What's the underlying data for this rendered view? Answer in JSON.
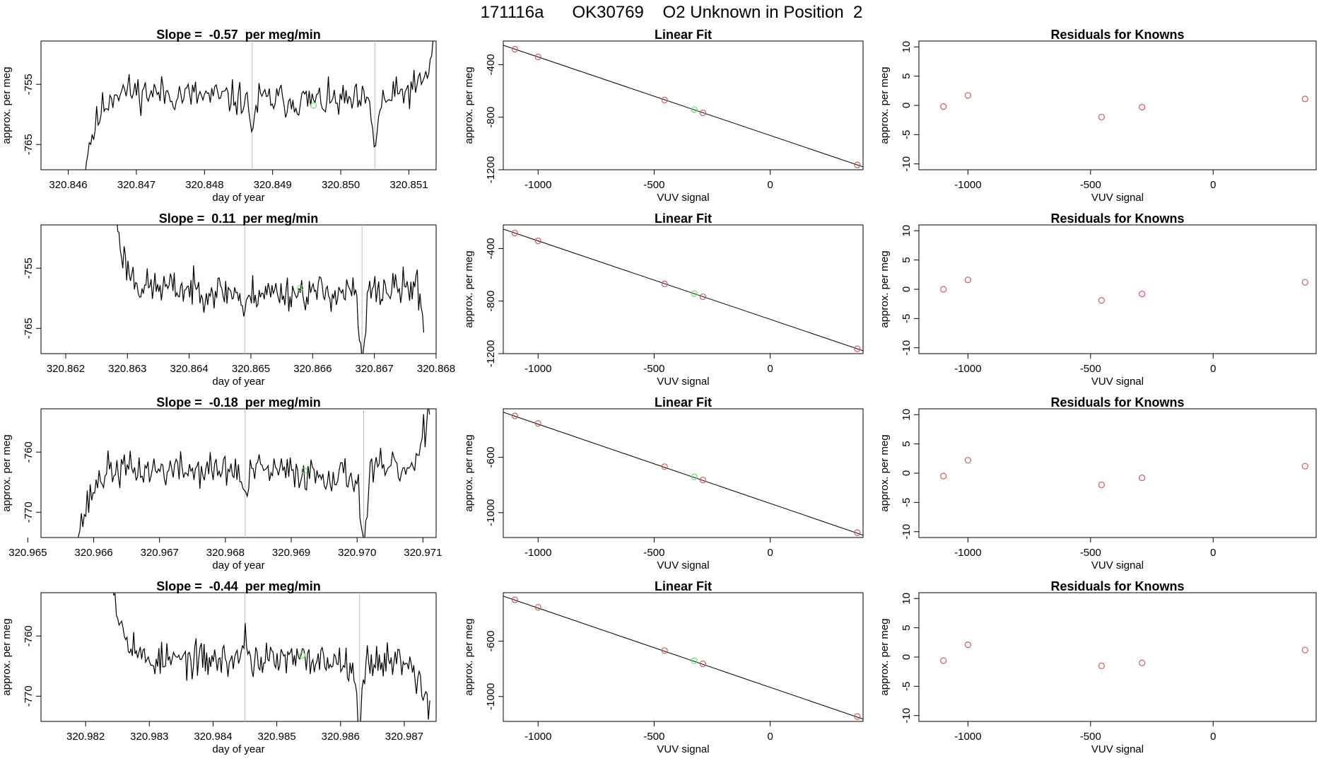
{
  "page": {
    "title": "171116a      OK30769    O2 Unknown in Position  2"
  },
  "colors": {
    "trace": "#000000",
    "vline": "#bbbbbb",
    "known_point": "#cd5c5c",
    "unknown_point": "#66e066"
  },
  "chart_data": [
    {
      "id": "trace-1",
      "type": "line",
      "title": "Slope =  -0.57  per meg/min",
      "xlabel": "day of year",
      "ylabel": "approx. per meg",
      "xlim": [
        320.8456,
        320.8514
      ],
      "ylim": [
        -769.2,
        -747.8
      ],
      "xticks": [
        320.846,
        320.847,
        320.848,
        320.849,
        320.85,
        320.851
      ],
      "xtick_labels": [
        "320.846",
        "320.847",
        "320.848",
        "320.849",
        "320.850",
        "320.851"
      ],
      "yticks": [
        -765,
        -755
      ],
      "ytick_labels": [
        "-765",
        "-755"
      ],
      "vlines": [
        320.8487,
        320.8505
      ],
      "marker": {
        "x": 320.8496,
        "y": -758.5
      },
      "seed": 11,
      "noise": 1.8,
      "profile": [
        [
          320.8462,
          -772
        ],
        [
          320.8463,
          -765
        ],
        [
          320.8464,
          -762
        ],
        [
          320.8465,
          -759
        ],
        [
          320.8467,
          -756
        ],
        [
          320.8486,
          -757.5
        ],
        [
          320.8487,
          -762
        ],
        [
          320.8488,
          -757.5
        ],
        [
          320.8504,
          -758
        ],
        [
          320.8505,
          -765
        ],
        [
          320.8506,
          -758
        ],
        [
          320.8512,
          -755
        ],
        [
          320.8513,
          -752
        ],
        [
          320.8514,
          -745
        ]
      ]
    },
    {
      "id": "fit-1",
      "type": "scatter",
      "title": "Linear Fit",
      "xlabel": "VUV signal",
      "ylabel": "approx. per meg",
      "xlim": [
        -1150,
        400
      ],
      "ylim": [
        -1200,
        -220
      ],
      "xticks": [
        -1000,
        -500,
        0
      ],
      "xtick_labels": [
        "-1000",
        "-500",
        "0"
      ],
      "yticks": [
        -1200,
        -800,
        -400
      ],
      "ytick_labels": [
        "-1200",
        "-800",
        "-400"
      ],
      "line": [
        [
          -1150,
          -252
        ],
        [
          400,
          -1178
        ]
      ],
      "known_x": [
        -1100,
        -1000,
        -455,
        -290,
        375
      ],
      "known_y": [
        -282,
        -341,
        -669,
        -767,
        -1163
      ],
      "unknown_x": [
        -327
      ],
      "unknown_y": [
        -742
      ]
    },
    {
      "id": "resid-1",
      "type": "scatter",
      "title": "Residuals for Knowns",
      "xlabel": "VUV signal",
      "ylabel": "approx. per meg",
      "xlim": [
        -1200,
        420
      ],
      "ylim": [
        -11,
        11
      ],
      "xticks": [
        -1000,
        -500,
        0
      ],
      "xtick_labels": [
        "-1000",
        "-500",
        "0"
      ],
      "yticks": [
        -10,
        -5,
        0,
        5,
        10
      ],
      "ytick_labels": [
        "-10",
        "-5",
        "0",
        "5",
        "10"
      ],
      "known_x": [
        -1100,
        -1000,
        -455,
        -290,
        375
      ],
      "known_y": [
        -0.2,
        1.7,
        -2.0,
        -0.3,
        1.1
      ]
    },
    {
      "id": "trace-2",
      "type": "line",
      "title": "Slope =  0.11  per meg/min",
      "xlabel": "day of year",
      "ylabel": "",
      "xlim": [
        320.8616,
        320.868
      ],
      "ylim": [
        -769.2,
        -747.8
      ],
      "xticks": [
        320.862,
        320.863,
        320.864,
        320.865,
        320.866,
        320.867,
        320.868
      ],
      "xtick_labels": [
        "320.862",
        "320.863",
        "320.864",
        "320.865",
        "320.866",
        "320.867",
        "320.868"
      ],
      "yticks": [
        -765,
        -755
      ],
      "ytick_labels": [
        "-765",
        "-755"
      ],
      "vlines": [
        320.8649,
        320.8668
      ],
      "marker": {
        "x": 320.8658,
        "y": -758.3
      },
      "seed": 23,
      "noise": 1.8,
      "profile": [
        [
          320.8628,
          -745
        ],
        [
          320.8629,
          -752
        ],
        [
          320.863,
          -755
        ],
        [
          320.8632,
          -758
        ],
        [
          320.8648,
          -759
        ],
        [
          320.8649,
          -763
        ],
        [
          320.865,
          -759
        ],
        [
          320.8667,
          -759
        ],
        [
          320.8668,
          -772
        ],
        [
          320.8669,
          -759
        ],
        [
          320.8677,
          -758
        ],
        [
          320.8678,
          -764
        ]
      ]
    },
    {
      "id": "fit-2",
      "type": "scatter",
      "title": "Linear Fit",
      "xlabel": "VUV signal",
      "ylabel": "approx. per meg",
      "xlim": [
        -1150,
        400
      ],
      "ylim": [
        -1200,
        -220
      ],
      "xticks": [
        -1000,
        -500,
        0
      ],
      "xtick_labels": [
        "-1000",
        "-500",
        "0"
      ],
      "yticks": [
        -1200,
        -800,
        -400
      ],
      "ytick_labels": [
        "-1200",
        "-800",
        "-400"
      ],
      "line": [
        [
          -1150,
          -252
        ],
        [
          400,
          -1178
        ]
      ],
      "known_x": [
        -1100,
        -1000,
        -455,
        -290,
        375
      ],
      "known_y": [
        -282,
        -341,
        -669,
        -767,
        -1163
      ],
      "unknown_x": [
        -327
      ],
      "unknown_y": [
        -742
      ]
    },
    {
      "id": "resid-2",
      "type": "scatter",
      "title": "Residuals for Knowns",
      "xlabel": "VUV signal",
      "ylabel": "approx. per meg",
      "xlim": [
        -1200,
        420
      ],
      "ylim": [
        -11,
        11
      ],
      "xticks": [
        -1000,
        -500,
        0
      ],
      "xtick_labels": [
        "-1000",
        "-500",
        "0"
      ],
      "yticks": [
        -10,
        -5,
        0,
        5,
        10
      ],
      "ytick_labels": [
        "-10",
        "-5",
        "0",
        "5",
        "10"
      ],
      "known_x": [
        -1100,
        -1000,
        -455,
        -290,
        375
      ],
      "known_y": [
        0.0,
        1.6,
        -1.9,
        -0.8,
        1.2
      ]
    },
    {
      "id": "trace-3",
      "type": "line",
      "title": "Slope =  -0.18  per meg/min",
      "xlabel": "day of year",
      "ylabel": "approx. per meg",
      "xlim": [
        320.9652,
        320.9712
      ],
      "ylim": [
        -774.2,
        -752.8
      ],
      "xticks": [
        320.965,
        320.966,
        320.967,
        320.968,
        320.969,
        320.97,
        320.971
      ],
      "xtick_labels": [
        "320.965",
        "320.966",
        "320.967",
        "320.968",
        "320.969",
        "320.970",
        "320.971"
      ],
      "yticks": [
        -770,
        -760
      ],
      "ytick_labels": [
        "-770",
        "-760"
      ],
      "vlines": [
        320.9683,
        320.9701
      ],
      "marker": {
        "x": 320.9692,
        "y": -763.1
      },
      "seed": 37,
      "noise": 1.8,
      "profile": [
        [
          320.9657,
          -777
        ],
        [
          320.9658,
          -772
        ],
        [
          320.9659,
          -769
        ],
        [
          320.966,
          -766
        ],
        [
          320.9662,
          -763
        ],
        [
          320.9682,
          -763
        ],
        [
          320.9683,
          -768
        ],
        [
          320.9684,
          -763
        ],
        [
          320.97,
          -764
        ],
        [
          320.9701,
          -776
        ],
        [
          320.9702,
          -763
        ],
        [
          320.9709,
          -763
        ],
        [
          320.971,
          -758
        ],
        [
          320.9711,
          -752
        ]
      ]
    },
    {
      "id": "fit-3",
      "type": "scatter",
      "title": "Linear Fit",
      "xlabel": "VUV signal",
      "ylabel": "approx. per meg",
      "xlim": [
        -1150,
        400
      ],
      "ylim": [
        -1180,
        -250
      ],
      "xticks": [
        -1000,
        -500,
        0
      ],
      "xtick_labels": [
        "-1000",
        "-500",
        "0"
      ],
      "yticks": [
        -1000,
        -600
      ],
      "ytick_labels": [
        "-1000",
        "-600"
      ],
      "line": [
        [
          -1150,
          -275
        ],
        [
          400,
          -1163
        ]
      ],
      "known_x": [
        -1100,
        -1000,
        -455,
        -290,
        375
      ],
      "known_y": [
        -301,
        -356,
        -668,
        -764,
        -1145
      ],
      "unknown_x": [
        -327
      ],
      "unknown_y": [
        -742
      ]
    },
    {
      "id": "resid-3",
      "type": "scatter",
      "title": "Residuals for Knowns",
      "xlabel": "VUV signal",
      "ylabel": "approx. per meg",
      "xlim": [
        -1200,
        420
      ],
      "ylim": [
        -11,
        11
      ],
      "xticks": [
        -1000,
        -500,
        0
      ],
      "xtick_labels": [
        "-1000",
        "-500",
        "0"
      ],
      "yticks": [
        -10,
        -5,
        0,
        5,
        10
      ],
      "ytick_labels": [
        "-10",
        "-5",
        "0",
        "5",
        "10"
      ],
      "known_x": [
        -1100,
        -1000,
        -455,
        -290,
        375
      ],
      "known_y": [
        -0.5,
        2.2,
        -2.0,
        -0.8,
        1.2
      ]
    },
    {
      "id": "trace-4",
      "type": "line",
      "title": "Slope =  -0.44  per meg/min",
      "xlabel": "day of year",
      "ylabel": "approx. per meg",
      "xlim": [
        320.9813,
        320.9875
      ],
      "ylim": [
        -774.2,
        -752.8
      ],
      "xticks": [
        320.982,
        320.983,
        320.984,
        320.985,
        320.986,
        320.987
      ],
      "xtick_labels": [
        "320.982",
        "320.983",
        "320.984",
        "320.985",
        "320.986",
        "320.987"
      ],
      "yticks": [
        -770,
        -760
      ],
      "ytick_labels": [
        "-770",
        "-760"
      ],
      "vlines": [
        320.9845,
        320.9863
      ],
      "marker": {
        "x": 320.9854,
        "y": -763.2
      },
      "seed": 53,
      "noise": 1.8,
      "profile": [
        [
          320.9824,
          -748
        ],
        [
          320.9825,
          -756
        ],
        [
          320.9826,
          -759
        ],
        [
          320.9828,
          -762
        ],
        [
          320.9829,
          -764
        ],
        [
          320.9844,
          -764
        ],
        [
          320.9845,
          -760
        ],
        [
          320.9846,
          -764
        ],
        [
          320.9862,
          -764
        ],
        [
          320.9863,
          -776
        ],
        [
          320.9864,
          -764
        ],
        [
          320.9871,
          -764
        ],
        [
          320.9873,
          -770
        ],
        [
          320.9874,
          -771
        ]
      ]
    },
    {
      "id": "fit-4",
      "type": "scatter",
      "title": "Linear Fit",
      "xlabel": "VUV signal",
      "ylabel": "approx. per meg",
      "xlim": [
        -1150,
        400
      ],
      "ylim": [
        -1180,
        -250
      ],
      "xticks": [
        -1000,
        -500,
        0
      ],
      "xtick_labels": [
        "-1000",
        "-500",
        "0"
      ],
      "yticks": [
        -1000,
        -600
      ],
      "ytick_labels": [
        "-1000",
        "-600"
      ],
      "line": [
        [
          -1150,
          -275
        ],
        [
          400,
          -1163
        ]
      ],
      "known_x": [
        -1100,
        -1000,
        -455,
        -290,
        375
      ],
      "known_y": [
        -301,
        -356,
        -668,
        -764,
        -1145
      ],
      "unknown_x": [
        -327
      ],
      "unknown_y": [
        -742
      ]
    },
    {
      "id": "resid-4",
      "type": "scatter",
      "title": "Residuals for Knowns",
      "xlabel": "VUV signal",
      "ylabel": "approx. per meg",
      "xlim": [
        -1200,
        420
      ],
      "ylim": [
        -11,
        11
      ],
      "xticks": [
        -1000,
        -500,
        0
      ],
      "xtick_labels": [
        "-1000",
        "-500",
        "0"
      ],
      "yticks": [
        -10,
        -5,
        0,
        5,
        10
      ],
      "ytick_labels": [
        "-10",
        "-5",
        "0",
        "5",
        "10"
      ],
      "known_x": [
        -1100,
        -1000,
        -455,
        -290,
        375
      ],
      "known_y": [
        -0.6,
        2.1,
        -1.5,
        -1.0,
        1.2
      ]
    }
  ]
}
